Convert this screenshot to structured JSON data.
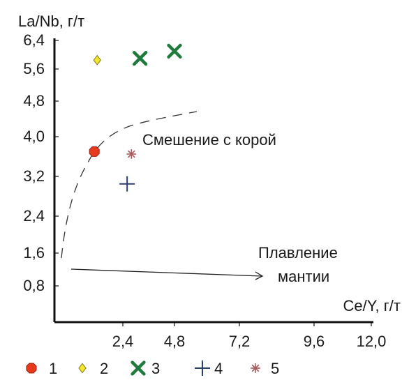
{
  "chart_data": {
    "type": "scatter",
    "title": "",
    "xlabel": "Ce/Y, г/т",
    "ylabel": "La/Nb, г/т",
    "xlim": [
      0,
      12.0
    ],
    "ylim": [
      0,
      6.4
    ],
    "x_ticks": [
      "2,4",
      "4,8",
      "7,2",
      "9,6",
      "12,0"
    ],
    "x_tick_values": [
      2.4,
      4.8,
      7.2,
      9.6,
      12.0
    ],
    "y_ticks": [
      "0,8",
      "1,6",
      "2,4",
      "3,2",
      "4,0",
      "4,8",
      "5,6",
      "6,4"
    ],
    "y_tick_values": [
      0.8,
      1.6,
      2.4,
      3.2,
      4.0,
      4.8,
      5.6,
      6.4
    ],
    "grid": false,
    "legend_position": "bottom",
    "series": [
      {
        "name": "1",
        "marker": "circle",
        "color": "#e53a1e",
        "points": [
          {
            "x": 1.4,
            "y": 3.7
          }
        ]
      },
      {
        "name": "2",
        "marker": "diamond",
        "color": "#f2e62e",
        "points": [
          {
            "x": 1.5,
            "y": 5.85
          }
        ]
      },
      {
        "name": "3",
        "marker": "x",
        "color": "#1f7a3c",
        "points": [
          {
            "x": 3.2,
            "y": 5.9
          },
          {
            "x": 4.8,
            "y": 6.1
          }
        ]
      },
      {
        "name": "4",
        "marker": "plus",
        "color": "#2c3e6b",
        "points": [
          {
            "x": 2.6,
            "y": 3.05
          }
        ]
      },
      {
        "name": "5",
        "marker": "asterisk",
        "color": "#a85a5a",
        "points": [
          {
            "x": 2.8,
            "y": 3.65
          }
        ]
      }
    ],
    "annotations": [
      {
        "id": "mixing",
        "text": "Смешение с корой"
      },
      {
        "id": "melting_line1",
        "text": "Плавление"
      },
      {
        "id": "melting_line2",
        "text": "мантии"
      }
    ]
  }
}
